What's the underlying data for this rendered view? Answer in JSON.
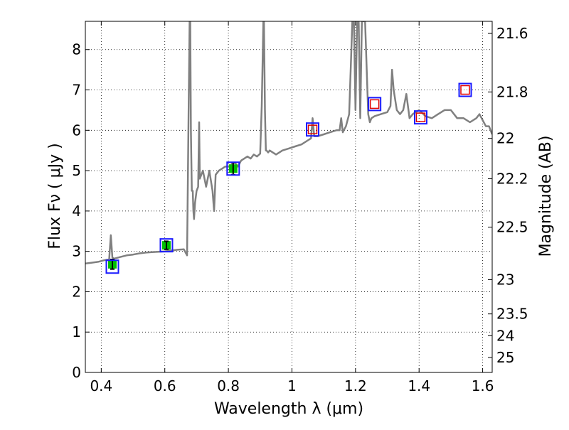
{
  "chart_data": {
    "type": "line",
    "xlabel": "Wavelength  λ (μm)",
    "ylabel": "Flux  Fν  ( μJy )",
    "ylabel_right": "Magnitude (AB)",
    "xlim": [
      0.35,
      1.63
    ],
    "ylim": [
      0,
      8.7
    ],
    "grid": true,
    "x_ticks": [
      0.4,
      0.6,
      0.8,
      1.0,
      1.2,
      1.4,
      1.6
    ],
    "x_tick_labels": [
      "0.4",
      "0.6",
      "0.8",
      "1",
      "1.2",
      "1.4",
      "1.6"
    ],
    "y_ticks": [
      0,
      1,
      2,
      3,
      4,
      5,
      6,
      7,
      8
    ],
    "y_tick_labels": [
      "0",
      "1",
      "2",
      "3",
      "4",
      "5",
      "6",
      "7",
      "8"
    ],
    "right_ticks": [
      {
        "label": "21.6",
        "flux": 8.4
      },
      {
        "label": "21.8",
        "flux": 6.95
      },
      {
        "label": "22",
        "flux": 5.8
      },
      {
        "label": "22.2",
        "flux": 4.8
      },
      {
        "label": "22.5",
        "flux": 3.6
      },
      {
        "label": "23",
        "flux": 2.3
      },
      {
        "label": "23.5",
        "flux": 1.45
      },
      {
        "label": "24",
        "flux": 0.91
      },
      {
        "label": "25",
        "flux": 0.37
      }
    ],
    "series": [
      {
        "color": "#808080",
        "x": [
          0.35,
          0.37,
          0.39,
          0.41,
          0.425,
          0.43,
          0.435,
          0.44,
          0.46,
          0.48,
          0.5,
          0.52,
          0.54,
          0.56,
          0.58,
          0.6,
          0.62,
          0.64,
          0.66,
          0.67,
          0.675,
          0.678,
          0.68,
          0.682,
          0.685,
          0.688,
          0.69,
          0.692,
          0.695,
          0.7,
          0.705,
          0.708,
          0.71,
          0.715,
          0.72,
          0.73,
          0.74,
          0.75,
          0.755,
          0.76,
          0.77,
          0.78,
          0.79,
          0.8,
          0.81,
          0.82,
          0.83,
          0.84,
          0.85,
          0.86,
          0.87,
          0.88,
          0.89,
          0.9,
          0.905,
          0.91,
          0.912,
          0.915,
          0.918,
          0.92,
          0.925,
          0.93,
          0.95,
          0.97,
          0.99,
          1.01,
          1.03,
          1.05,
          1.06,
          1.065,
          1.07,
          1.08,
          1.1,
          1.12,
          1.14,
          1.15,
          1.155,
          1.16,
          1.17,
          1.18,
          1.19,
          1.195,
          1.2,
          1.205,
          1.21,
          1.215,
          1.22,
          1.23,
          1.24,
          1.245,
          1.25,
          1.26,
          1.28,
          1.3,
          1.31,
          1.315,
          1.32,
          1.33,
          1.34,
          1.35,
          1.36,
          1.37,
          1.38,
          1.4,
          1.42,
          1.44,
          1.46,
          1.48,
          1.5,
          1.52,
          1.54,
          1.56,
          1.58,
          1.59,
          1.6,
          1.61,
          1.62,
          1.63
        ],
        "y": [
          2.7,
          2.72,
          2.74,
          2.78,
          2.8,
          3.4,
          2.85,
          2.82,
          2.86,
          2.9,
          2.92,
          2.95,
          2.97,
          2.98,
          2.99,
          3.0,
          3.02,
          3.04,
          3.05,
          2.9,
          6.5,
          8.7,
          8.7,
          6.0,
          4.5,
          4.5,
          4.0,
          3.8,
          4.2,
          4.5,
          4.6,
          6.2,
          4.8,
          4.9,
          5.0,
          4.6,
          5.0,
          4.5,
          4.0,
          4.9,
          5.0,
          5.05,
          5.1,
          5.1,
          5.15,
          5.2,
          5.1,
          5.25,
          5.3,
          5.35,
          5.3,
          5.4,
          5.35,
          5.42,
          6.6,
          8.7,
          8.7,
          6.5,
          5.5,
          5.5,
          5.45,
          5.5,
          5.4,
          5.5,
          5.55,
          5.6,
          5.65,
          5.75,
          5.8,
          6.3,
          5.85,
          5.85,
          5.9,
          5.95,
          6.0,
          6.0,
          6.3,
          5.95,
          6.1,
          6.4,
          8.7,
          8.7,
          6.5,
          8.7,
          8.7,
          6.3,
          8.7,
          8.7,
          6.4,
          6.2,
          6.3,
          6.35,
          6.4,
          6.45,
          6.6,
          7.5,
          7.0,
          6.5,
          6.4,
          6.5,
          6.9,
          6.3,
          6.4,
          6.5,
          6.35,
          6.3,
          6.4,
          6.5,
          6.5,
          6.3,
          6.3,
          6.2,
          6.3,
          6.4,
          6.25,
          6.1,
          6.1,
          5.9
        ]
      }
    ],
    "photometry_observed": [
      {
        "x": 0.435,
        "y": 2.68,
        "err": 0.12
      },
      {
        "x": 0.605,
        "y": 3.15,
        "err": 0.1
      },
      {
        "x": 0.815,
        "y": 5.05,
        "err": 0.15
      }
    ],
    "photometry_model": [
      {
        "x": 0.435,
        "y": 2.62
      },
      {
        "x": 0.605,
        "y": 3.15
      },
      {
        "x": 0.815,
        "y": 5.05
      },
      {
        "x": 1.065,
        "y": 6.02
      },
      {
        "x": 1.26,
        "y": 6.65
      },
      {
        "x": 1.405,
        "y": 6.32
      },
      {
        "x": 1.545,
        "y": 7.0
      }
    ],
    "colors": {
      "spectrum": "#808080",
      "observed_fill": "#00c000",
      "model_box": "#1a1aff",
      "upper_box": "#e00000",
      "grid": "#000000"
    }
  }
}
